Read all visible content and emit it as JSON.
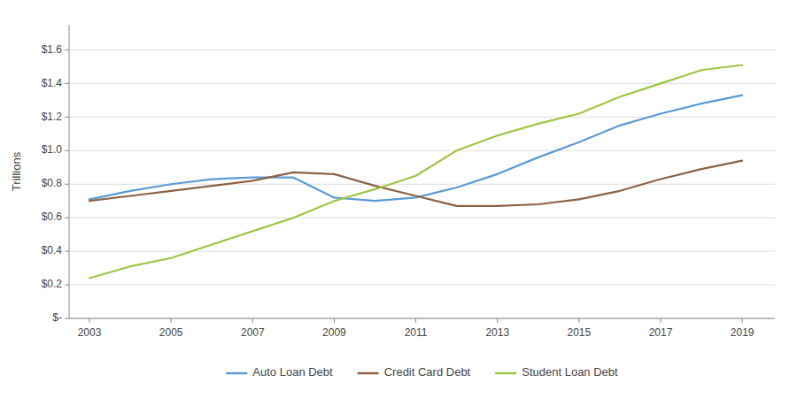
{
  "chart_data": {
    "type": "line",
    "y_label": "Trillions",
    "x": [
      2003,
      2004,
      2005,
      2006,
      2007,
      2008,
      2009,
      2010,
      2011,
      2012,
      2013,
      2014,
      2015,
      2016,
      2017,
      2018,
      2019
    ],
    "series": [
      {
        "name": "Auto Loan Debt",
        "color": "#5B9BD5",
        "values": [
          0.71,
          0.76,
          0.8,
          0.83,
          0.84,
          0.84,
          0.72,
          0.7,
          0.72,
          0.78,
          0.86,
          0.96,
          1.05,
          1.15,
          1.22,
          1.28,
          1.33
        ]
      },
      {
        "name": "Credit Card Debt",
        "color": "#8B6347",
        "values": [
          0.7,
          0.73,
          0.76,
          0.79,
          0.82,
          0.87,
          0.86,
          0.79,
          0.73,
          0.67,
          0.67,
          0.68,
          0.71,
          0.76,
          0.83,
          0.89,
          0.94
        ]
      },
      {
        "name": "Student Loan Debt",
        "color": "#9DC544",
        "values": [
          0.24,
          0.31,
          0.36,
          0.44,
          0.52,
          0.6,
          0.7,
          0.77,
          0.85,
          1.0,
          1.09,
          1.16,
          1.22,
          1.32,
          1.4,
          1.48,
          1.51
        ]
      }
    ],
    "xlim": [
      2002.5,
      2019.8
    ],
    "xticks": [
      2003,
      2005,
      2007,
      2009,
      2011,
      2013,
      2015,
      2017,
      2019
    ],
    "ylim": [
      0.0,
      1.75
    ],
    "yticks": [
      {
        "value": 0.0,
        "label": "$-"
      },
      {
        "value": 0.2,
        "label": "$0.2"
      },
      {
        "value": 0.4,
        "label": "$0.4"
      },
      {
        "value": 0.6,
        "label": "$0.6"
      },
      {
        "value": 0.8,
        "label": "$0.8"
      },
      {
        "value": 1.0,
        "label": "$1.0"
      },
      {
        "value": 1.2,
        "label": "$1.2"
      },
      {
        "value": 1.4,
        "label": "$1.4"
      },
      {
        "value": 1.6,
        "label": "$1.6"
      }
    ],
    "grid": true,
    "legend": "bottom"
  }
}
